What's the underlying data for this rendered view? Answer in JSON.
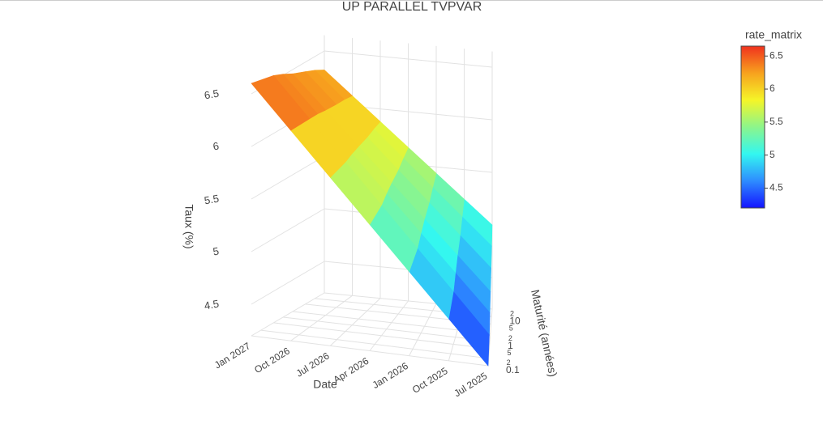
{
  "chart_data": {
    "type": "surface",
    "title": "UP PARALLEL TVPVAR",
    "x_label": "Date",
    "y_label": "Maturité (années)",
    "z_label": "Taux (%)",
    "x": [
      "Jul 2025",
      "Oct 2025",
      "Jan 2026",
      "Apr 2026",
      "Jul 2026",
      "Oct 2026",
      "Jan 2027"
    ],
    "y": [
      0.1,
      0.5,
      1,
      2,
      5,
      10,
      20
    ],
    "z": [
      [
        4.2,
        4.33,
        4.47,
        4.6,
        4.73,
        4.87,
        5.0
      ],
      [
        4.6,
        4.7,
        4.81,
        4.91,
        5.01,
        5.12,
        5.22
      ],
      [
        5.0,
        5.07,
        5.15,
        5.22,
        5.29,
        5.37,
        5.44
      ],
      [
        5.4,
        5.44,
        5.49,
        5.53,
        5.57,
        5.62,
        5.66
      ],
      [
        5.8,
        5.81,
        5.83,
        5.84,
        5.85,
        5.87,
        5.88
      ],
      [
        6.2,
        6.18,
        6.17,
        6.15,
        6.13,
        6.12,
        6.1
      ],
      [
        6.6,
        6.55,
        6.51,
        6.46,
        6.41,
        6.37,
        6.32
      ]
    ],
    "ylim": [
      0.1,
      20
    ],
    "y_log": true,
    "yticks": [
      0.1,
      {
        "value": 0.2,
        "label": "2"
      },
      {
        "value": 0.5,
        "label": "5"
      },
      1,
      {
        "value": 2,
        "label": "2"
      },
      {
        "value": 5,
        "label": "5"
      },
      10,
      {
        "value": 20,
        "label": "2"
      }
    ],
    "zlim": [
      4.2,
      6.65
    ],
    "zticks": [
      4.5,
      5,
      5.5,
      6,
      6.5
    ],
    "grid": true,
    "colorbar": {
      "title": "rate_matrix",
      "lim": [
        4.2,
        6.65
      ],
      "ticks": [
        4.5,
        5,
        5.5,
        6,
        6.5
      ]
    },
    "colorscale": [
      "#1414ff",
      "#2e8cff",
      "#33f7f0",
      "#8cf58c",
      "#f5f528",
      "#f7a21e",
      "#f0321e"
    ]
  }
}
